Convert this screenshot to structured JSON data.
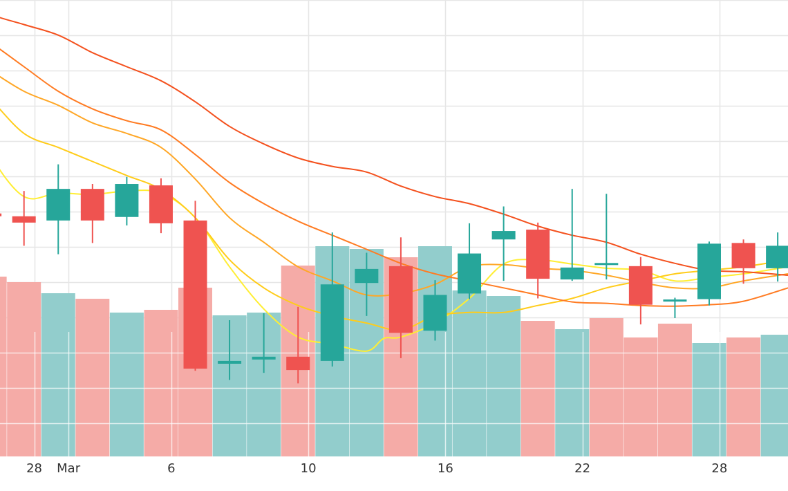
{
  "chart_data": {
    "type": "candlestick",
    "grid": true,
    "colors": {
      "up": "#26a69a",
      "down": "#ef5350",
      "volume_up": "#92cdcc",
      "volume_down": "#f5aba7",
      "grid": "#e6e6e6",
      "ma": [
        "#ffee33",
        "#ffcc1a",
        "#ffa726",
        "#ff7b22",
        "#f4511e"
      ]
    },
    "x_domain": [
      0.3,
      23.3
    ],
    "y_price_range": [
      0,
      65
    ],
    "y_volume_range": [
      0,
      165
    ],
    "x_tick_labels": [
      {
        "x": 1.3,
        "label": "28"
      },
      {
        "x": 2.3,
        "label": "Mar"
      },
      {
        "x": 5.3,
        "label": "6"
      },
      {
        "x": 9.3,
        "label": "10"
      },
      {
        "x": 13.3,
        "label": "16"
      },
      {
        "x": 17.3,
        "label": "22"
      },
      {
        "x": 21.3,
        "label": "28"
      }
    ],
    "candles": [
      {
        "x": 0,
        "open": 34.6,
        "close": 34.2,
        "high": 35.8,
        "low": 29.2
      },
      {
        "x": 1,
        "open": 34.2,
        "close": 33.3,
        "high": 37.8,
        "low": 30.0
      },
      {
        "x": 2,
        "open": 33.6,
        "close": 38.1,
        "high": 41.6,
        "low": 28.8
      },
      {
        "x": 3,
        "open": 38.1,
        "close": 33.6,
        "high": 38.8,
        "low": 30.4
      },
      {
        "x": 4,
        "open": 34.1,
        "close": 38.8,
        "high": 39.8,
        "low": 32.9
      },
      {
        "x": 5,
        "open": 38.6,
        "close": 33.2,
        "high": 39.6,
        "low": 31.8
      },
      {
        "x": 6,
        "open": 33.6,
        "close": 12.5,
        "high": 36.4,
        "low": 12.2
      },
      {
        "x": 7,
        "open": 13.2,
        "close": 13.6,
        "high": 19.4,
        "low": 10.9
      },
      {
        "x": 8,
        "open": 13.8,
        "close": 14.2,
        "high": 20.4,
        "low": 11.9
      },
      {
        "x": 9,
        "open": 14.2,
        "close": 12.3,
        "high": 21.3,
        "low": 10.4
      },
      {
        "x": 10,
        "open": 13.6,
        "close": 24.5,
        "high": 31.9,
        "low": 12.8
      },
      {
        "x": 11,
        "open": 24.7,
        "close": 26.7,
        "high": 29.0,
        "low": 20.0
      },
      {
        "x": 12,
        "open": 27.1,
        "close": 17.6,
        "high": 31.2,
        "low": 14.0
      },
      {
        "x": 13,
        "open": 17.9,
        "close": 23.0,
        "high": 25.1,
        "low": 16.5
      },
      {
        "x": 14,
        "open": 23.2,
        "close": 28.9,
        "high": 33.2,
        "low": 22.4
      },
      {
        "x": 15,
        "open": 30.9,
        "close": 32.1,
        "high": 35.6,
        "low": 25.0
      },
      {
        "x": 16,
        "open": 32.3,
        "close": 25.3,
        "high": 33.3,
        "low": 22.5
      },
      {
        "x": 17,
        "open": 25.2,
        "close": 26.9,
        "high": 38.1,
        "low": 25.0
      },
      {
        "x": 18,
        "open": 27.4,
        "close": 27.4,
        "high": 37.4,
        "low": 25.2
      },
      {
        "x": 19,
        "open": 27.1,
        "close": 21.6,
        "high": 28.4,
        "low": 18.8
      },
      {
        "x": 20,
        "open": 22.2,
        "close": 22.2,
        "high": 22.6,
        "low": 19.7
      },
      {
        "x": 21,
        "open": 22.4,
        "close": 30.3,
        "high": 30.6,
        "low": 21.5
      },
      {
        "x": 22,
        "open": 30.4,
        "close": 26.8,
        "high": 30.9,
        "low": 24.6
      },
      {
        "x": 23,
        "open": 26.8,
        "close": 30.0,
        "high": 31.9,
        "low": 24.9
      }
    ],
    "volume": [
      {
        "x": 0,
        "value": 65.0,
        "direction": "down"
      },
      {
        "x": 1,
        "value": 63.0,
        "direction": "down"
      },
      {
        "x": 2,
        "value": 59.0,
        "direction": "up"
      },
      {
        "x": 3,
        "value": 57.0,
        "direction": "down"
      },
      {
        "x": 4,
        "value": 52.0,
        "direction": "up"
      },
      {
        "x": 5,
        "value": 53.0,
        "direction": "down"
      },
      {
        "x": 6,
        "value": 61.0,
        "direction": "down"
      },
      {
        "x": 7,
        "value": 51.0,
        "direction": "up"
      },
      {
        "x": 8,
        "value": 52.0,
        "direction": "up"
      },
      {
        "x": 9,
        "value": 69.0,
        "direction": "down"
      },
      {
        "x": 10,
        "value": 76.0,
        "direction": "up"
      },
      {
        "x": 11,
        "value": 75.0,
        "direction": "up"
      },
      {
        "x": 12,
        "value": 72.0,
        "direction": "down"
      },
      {
        "x": 13,
        "value": 76.0,
        "direction": "up"
      },
      {
        "x": 14,
        "value": 60.0,
        "direction": "up"
      },
      {
        "x": 15,
        "value": 58.0,
        "direction": "up"
      },
      {
        "x": 16,
        "value": 49.0,
        "direction": "down"
      },
      {
        "x": 17,
        "value": 46.0,
        "direction": "up"
      },
      {
        "x": 18,
        "value": 50.0,
        "direction": "down"
      },
      {
        "x": 19,
        "value": 43.0,
        "direction": "down"
      },
      {
        "x": 20,
        "value": 48.0,
        "direction": "down"
      },
      {
        "x": 21,
        "value": 41.0,
        "direction": "up"
      },
      {
        "x": 22,
        "value": 43.0,
        "direction": "down"
      },
      {
        "x": 23,
        "value": 44.0,
        "direction": "up"
      }
    ],
    "moving_averages": [
      {
        "x": [
          -0.7,
          0.0,
          1.0,
          2.0,
          3.0,
          4.0,
          5.0,
          6.0,
          7.0,
          8.0,
          9.0,
          10.0,
          11.0,
          11.5,
          12.0,
          13.0,
          14.0,
          15.0,
          16.0,
          17.0,
          18.0,
          19.0,
          20.0,
          21.0,
          22.0,
          23.3
        ],
        "y": [
          50.0,
          43.0,
          37.0,
          37.5,
          37.3,
          37.8,
          37.5,
          34.0,
          27.0,
          21.0,
          17.0,
          16.0,
          15.0,
          16.8,
          17.0,
          19.0,
          22.5,
          27.4,
          28.0,
          27.4,
          26.8,
          26.5,
          25.0,
          25.5,
          26.0,
          27.0
        ]
      },
      {
        "x": [
          -0.7,
          0.0,
          1.0,
          2.0,
          3.0,
          4.0,
          5.0,
          6.0,
          7.0,
          8.0,
          9.0,
          10.0,
          11.0,
          12.0,
          13.0,
          14.0,
          15.0,
          16.0,
          17.0,
          18.0,
          19.0,
          20.0,
          21.0,
          22.0,
          23.3
        ],
        "y": [
          54.0,
          51.0,
          46.0,
          44.0,
          42.0,
          40.0,
          38.0,
          34.0,
          28.0,
          24.0,
          21.5,
          20.0,
          19.0,
          18.0,
          20.0,
          20.5,
          20.5,
          21.5,
          22.5,
          24.0,
          25.0,
          26.0,
          26.5,
          27.0,
          28.0
        ]
      },
      {
        "x": [
          -0.7,
          0.0,
          1.0,
          2.0,
          3.0,
          4.0,
          5.0,
          6.0,
          7.0,
          8.0,
          9.0,
          10.0,
          11.0,
          12.0,
          13.0,
          14.0,
          15.0,
          16.0,
          17.0,
          18.0,
          19.0,
          20.0,
          21.0,
          22.0,
          23.3
        ],
        "y": [
          57.0,
          55.0,
          52.0,
          50.0,
          47.5,
          46.0,
          44.0,
          39.5,
          34.0,
          30.5,
          27.0,
          25.0,
          23.0,
          23.2,
          24.5,
          27.0,
          27.3,
          26.8,
          26.5,
          25.8,
          24.8,
          24.0,
          24.0,
          25.0,
          26.0
        ]
      },
      {
        "x": [
          -0.7,
          0.0,
          1.0,
          2.0,
          3.0,
          4.0,
          5.0,
          6.0,
          7.0,
          8.0,
          9.0,
          10.0,
          11.0,
          12.0,
          13.0,
          14.0,
          15.0,
          16.0,
          17.0,
          18.0,
          19.0,
          20.0,
          21.0,
          22.0,
          23.3
        ],
        "y": [
          61.0,
          59.0,
          55.5,
          52.0,
          49.5,
          47.8,
          46.5,
          43.0,
          39.0,
          36.0,
          33.5,
          31.5,
          29.5,
          27.5,
          26.0,
          25.0,
          24.0,
          23.0,
          22.0,
          21.8,
          21.5,
          21.4,
          21.6,
          22.1,
          24.0
        ]
      },
      {
        "x": [
          -0.7,
          0.0,
          1.0,
          2.0,
          3.0,
          4.0,
          5.0,
          6.0,
          7.0,
          8.0,
          9.0,
          10.0,
          11.0,
          12.0,
          13.0,
          14.0,
          15.0,
          16.0,
          17.0,
          18.0,
          19.0,
          20.0,
          21.0,
          22.0,
          23.3
        ],
        "y": [
          65.0,
          63.0,
          61.5,
          60.0,
          57.5,
          55.5,
          53.5,
          50.5,
          47.0,
          44.5,
          42.5,
          41.3,
          40.5,
          38.5,
          37.0,
          36.0,
          34.5,
          32.8,
          31.5,
          30.5,
          28.8,
          27.5,
          26.5,
          26.3,
          25.8
        ]
      }
    ]
  }
}
